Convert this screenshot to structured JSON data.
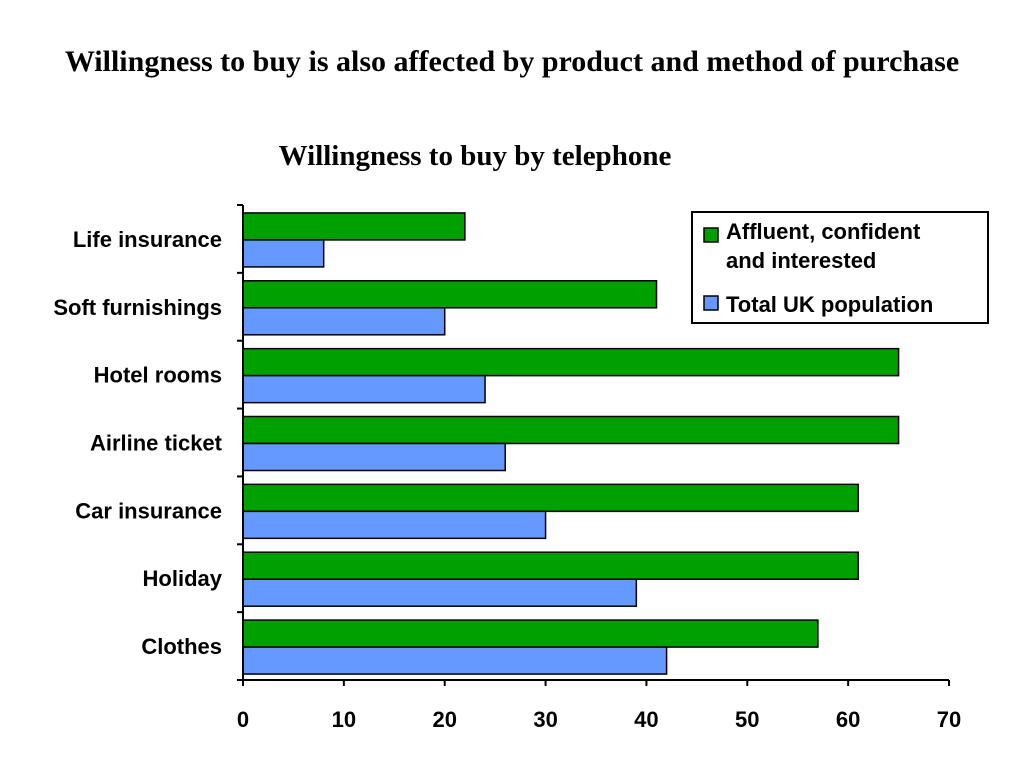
{
  "slide": {
    "title": "Willingness to buy is also affected by product and method of purchase"
  },
  "chart_data": {
    "type": "bar",
    "orientation": "horizontal",
    "title": "Willingness to buy by telephone",
    "xlabel": "",
    "ylabel": "",
    "xlim": [
      0,
      70
    ],
    "xticks": [
      0,
      10,
      20,
      30,
      40,
      50,
      60,
      70
    ],
    "grid": false,
    "legend_position": "top-right",
    "categories": [
      "Life insurance",
      "Soft furnishings",
      "Hotel rooms",
      "Airline ticket",
      "Car insurance",
      "Holiday",
      "Clothes"
    ],
    "series": [
      {
        "name": "Affluent, confident and interested",
        "color": "#00a000",
        "values": [
          22,
          41,
          65,
          65,
          61,
          61,
          57
        ]
      },
      {
        "name": "Total UK population",
        "color": "#6699ff",
        "values": [
          8,
          20,
          24,
          26,
          30,
          39,
          42
        ]
      }
    ]
  }
}
